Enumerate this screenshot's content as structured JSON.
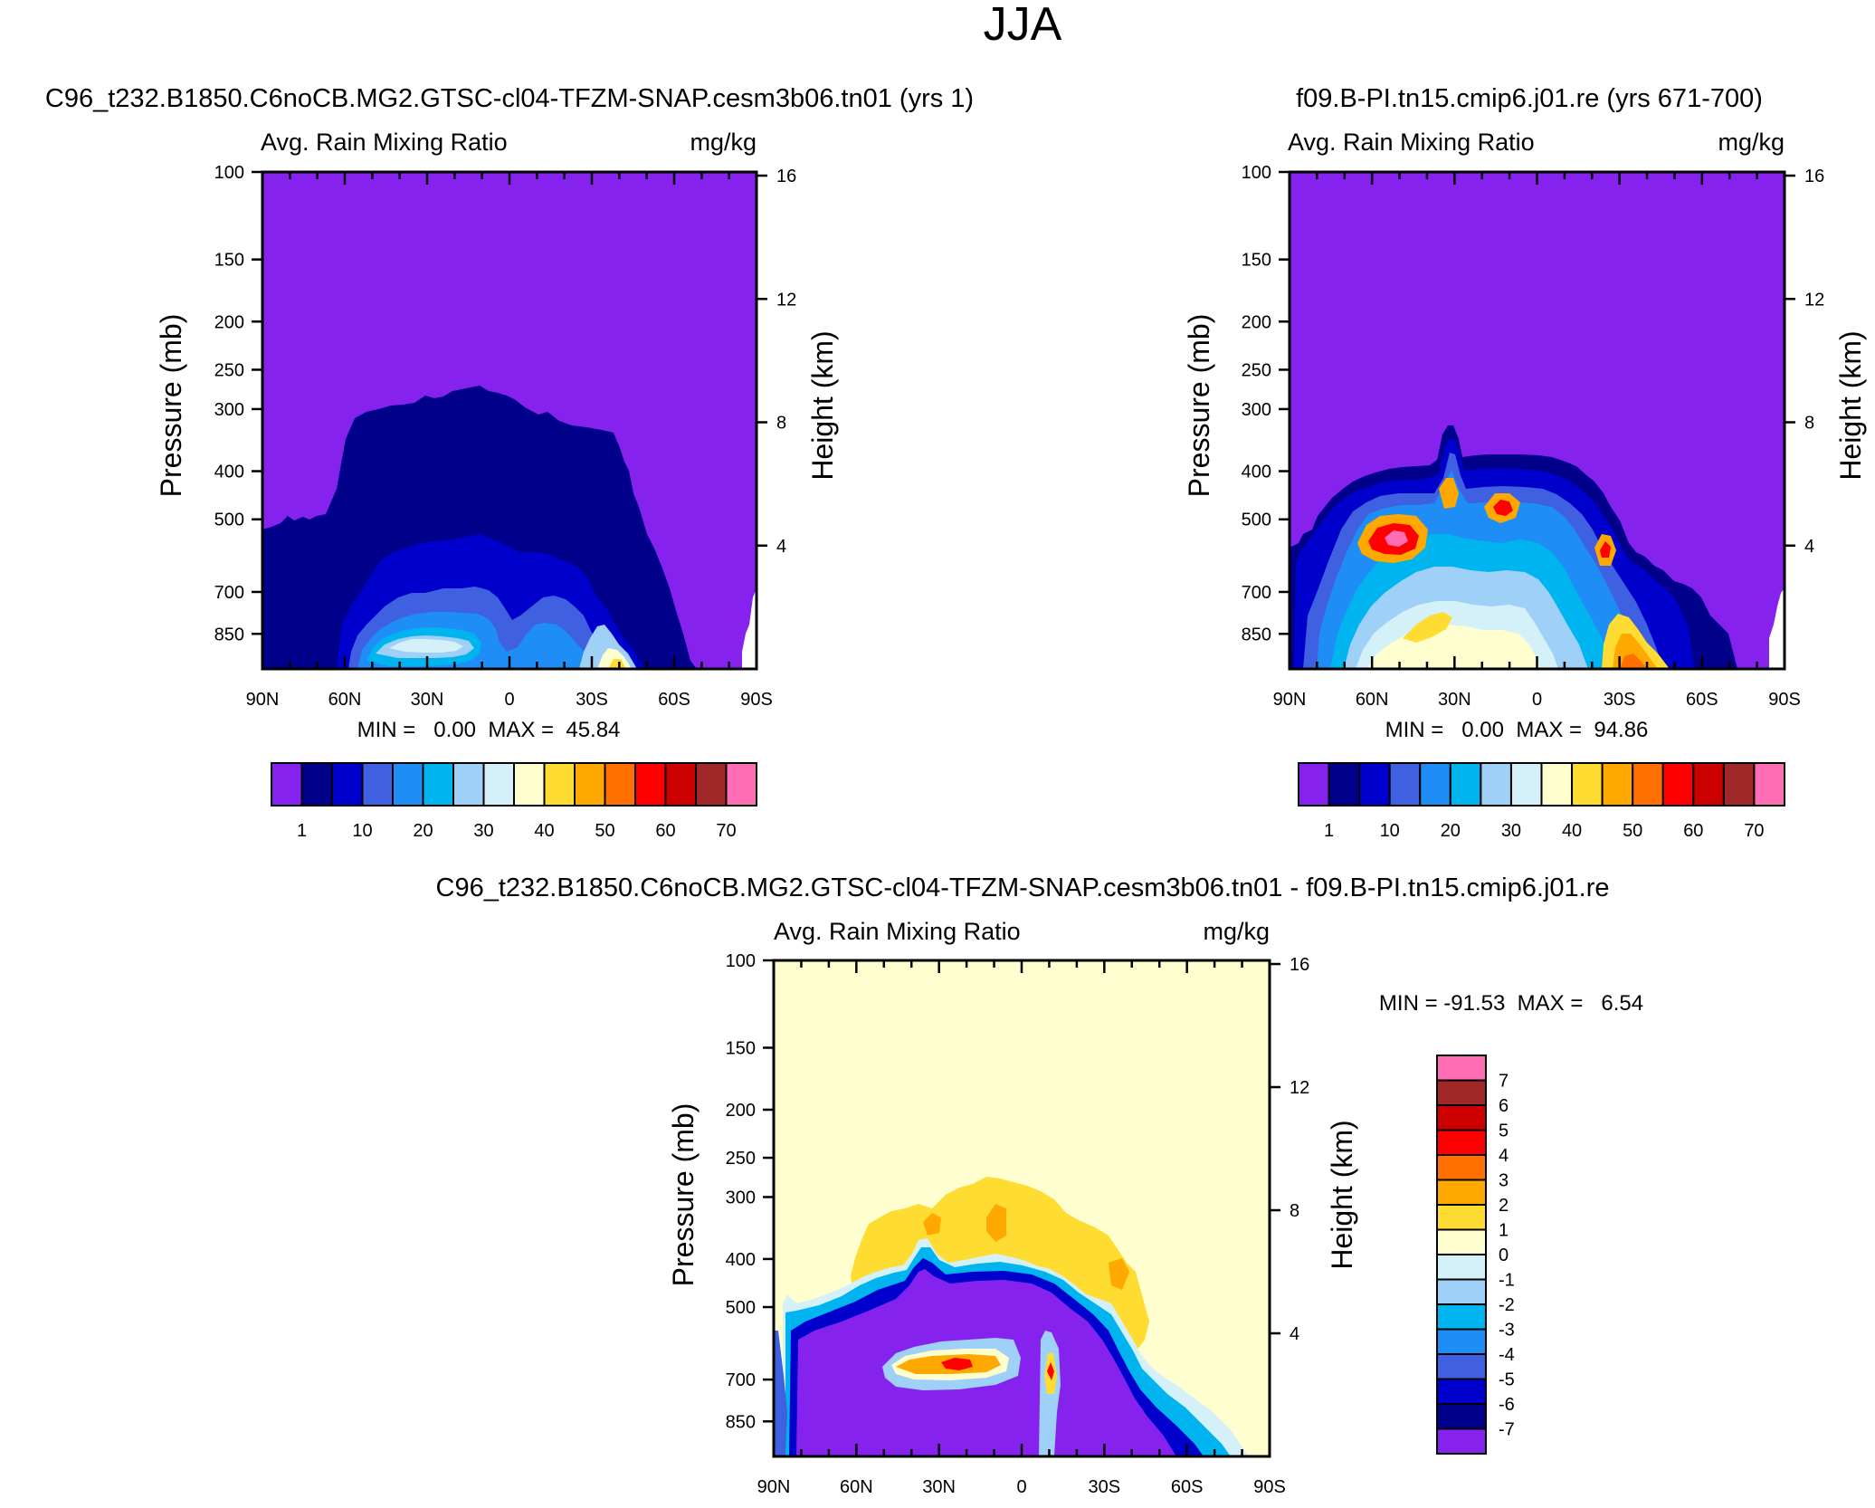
{
  "page": {
    "title": "JJA"
  },
  "chart_data": [
    {
      "type": "contour",
      "title": "C96_t232.B1850.C6noCB.MG2.GTSC-cl04-TFZM-SNAP.cesm3b06.tn01 (yrs 1)",
      "left_string": "Avg. Rain Mixing Ratio",
      "right_string": "mg/kg",
      "xlabel": "",
      "ylabel": "Pressure (mb)",
      "y2label": "Height (km)",
      "x_ticks": [
        "90N",
        "60N",
        "30N",
        "0",
        "30S",
        "60S",
        "90S"
      ],
      "p_ticks": [
        "100",
        "150",
        "200",
        "250",
        "300",
        "400",
        "500",
        "700",
        "850"
      ],
      "p_values": [
        100,
        150,
        200,
        250,
        300,
        400,
        500,
        700,
        850
      ],
      "z_ticks": [
        "16",
        "12",
        "8",
        "4"
      ],
      "z_values": [
        16,
        12,
        8,
        4
      ],
      "ylim": [
        100,
        1000
      ],
      "stats": "MIN =   0.00  MAX =  45.84",
      "levels": [
        1,
        5,
        10,
        15,
        20,
        25,
        30,
        35,
        40,
        45,
        50,
        55,
        60,
        65,
        70
      ],
      "level_labels": [
        "1",
        "10",
        "20",
        "30",
        "40",
        "50",
        "60",
        "70"
      ],
      "colors": [
        "#8622ee",
        "#00008a",
        "#0000cd",
        "#3f60e0",
        "#1e8ef6",
        "#00b4f0",
        "#9fd0f8",
        "#d4f1fa",
        "#fefece",
        "#ffdc32",
        "#ffa800",
        "#ff7000",
        "#ff0000",
        "#cc0000",
        "#a02828",
        "#ff6eb4"
      ]
    },
    {
      "type": "contour",
      "title": "f09.B-PI.tn15.cmip6.j01.re (yrs 671-700)",
      "left_string": "Avg. Rain Mixing Ratio",
      "right_string": "mg/kg",
      "xlabel": "",
      "ylabel": "Pressure (mb)",
      "y2label": "Height (km)",
      "x_ticks": [
        "90N",
        "60N",
        "30N",
        "0",
        "30S",
        "60S",
        "90S"
      ],
      "p_ticks": [
        "100",
        "150",
        "200",
        "250",
        "300",
        "400",
        "500",
        "700",
        "850"
      ],
      "p_values": [
        100,
        150,
        200,
        250,
        300,
        400,
        500,
        700,
        850
      ],
      "z_ticks": [
        "16",
        "12",
        "8",
        "4"
      ],
      "z_values": [
        16,
        12,
        8,
        4
      ],
      "ylim": [
        100,
        1000
      ],
      "stats": "MIN =   0.00  MAX =  94.86",
      "levels": [
        1,
        5,
        10,
        15,
        20,
        25,
        30,
        35,
        40,
        45,
        50,
        55,
        60,
        65,
        70
      ],
      "level_labels": [
        "1",
        "10",
        "20",
        "30",
        "40",
        "50",
        "60",
        "70"
      ],
      "colors": [
        "#8622ee",
        "#00008a",
        "#0000cd",
        "#3f60e0",
        "#1e8ef6",
        "#00b4f0",
        "#9fd0f8",
        "#d4f1fa",
        "#fefece",
        "#ffdc32",
        "#ffa800",
        "#ff7000",
        "#ff0000",
        "#cc0000",
        "#a02828",
        "#ff6eb4"
      ]
    },
    {
      "type": "contour",
      "title": "C96_t232.B1850.C6noCB.MG2.GTSC-cl04-TFZM-SNAP.cesm3b06.tn01 - f09.B-PI.tn15.cmip6.j01.re",
      "left_string": "Avg. Rain Mixing Ratio",
      "right_string": "mg/kg",
      "xlabel": "",
      "ylabel": "Pressure (mb)",
      "y2label": "Height (km)",
      "x_ticks": [
        "90N",
        "60N",
        "30N",
        "0",
        "30S",
        "60S",
        "90S"
      ],
      "p_ticks": [
        "100",
        "150",
        "200",
        "250",
        "300",
        "400",
        "500",
        "700",
        "850"
      ],
      "p_values": [
        100,
        150,
        200,
        250,
        300,
        400,
        500,
        700,
        850
      ],
      "z_ticks": [
        "16",
        "12",
        "8",
        "4"
      ],
      "z_values": [
        16,
        12,
        8,
        4
      ],
      "ylim": [
        100,
        1000
      ],
      "stats": "MIN = -91.53  MAX =   6.54",
      "levels": [
        -7,
        -6,
        -5,
        -4,
        -3,
        -2,
        -1,
        0,
        1,
        2,
        3,
        4,
        5,
        6,
        7
      ],
      "level_labels": [
        "7",
        "6",
        "5",
        "4",
        "3",
        "2",
        "1",
        "0",
        "-1",
        "-2",
        "-3",
        "-4",
        "-5",
        "-6",
        "-7"
      ],
      "colors": [
        "#8622ee",
        "#00008a",
        "#0000cd",
        "#3f60e0",
        "#1e8ef6",
        "#00b4f0",
        "#9fd0f8",
        "#d4f1fa",
        "#fefece",
        "#ffdc32",
        "#ffa800",
        "#ff7000",
        "#ff0000",
        "#cc0000",
        "#a02828",
        "#ff6eb4"
      ]
    }
  ]
}
